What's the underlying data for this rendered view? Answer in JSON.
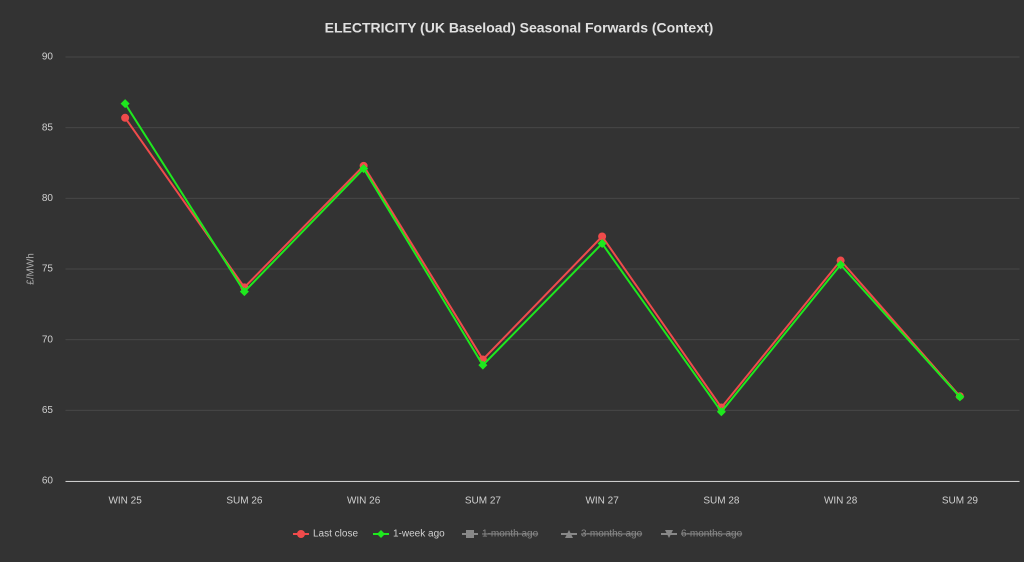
{
  "chart_data": {
    "type": "line",
    "title": "ELECTRICITY (UK Baseload) Seasonal Forwards (Context)",
    "y_label": "£/MWh",
    "categories": [
      "WIN 25",
      "SUM 26",
      "WIN 26",
      "SUM 27",
      "WIN 27",
      "SUM 28",
      "WIN 28",
      "SUM 29"
    ],
    "series": [
      {
        "name": "Last close",
        "color": "#f04b4b",
        "marker": "circle",
        "visible": true,
        "values": [
          85.7,
          73.7,
          82.3,
          68.6,
          77.3,
          65.2,
          75.6,
          66.0
        ]
      },
      {
        "name": "1-week ago",
        "color": "#1ee81e",
        "marker": "diamond",
        "visible": true,
        "values": [
          86.7,
          73.4,
          82.1,
          68.2,
          76.8,
          64.9,
          75.3,
          65.95
        ]
      },
      {
        "name": "1-month ago",
        "color": "#888888",
        "marker": "square",
        "visible": false,
        "values": [
          null,
          null,
          null,
          null,
          null,
          null,
          null,
          null
        ]
      },
      {
        "name": "3-months ago",
        "color": "#888888",
        "marker": "triangle",
        "visible": false,
        "values": [
          null,
          null,
          null,
          null,
          null,
          null,
          null,
          null
        ]
      },
      {
        "name": "6-months ago",
        "color": "#888888",
        "marker": "triangle-down",
        "visible": false,
        "values": [
          null,
          null,
          null,
          null,
          null,
          null,
          null,
          null
        ]
      }
    ],
    "ylim": [
      60,
      90
    ],
    "yticks": [
      60,
      65,
      70,
      75,
      80,
      85,
      90
    ],
    "grid": true,
    "legend": "bottom"
  }
}
